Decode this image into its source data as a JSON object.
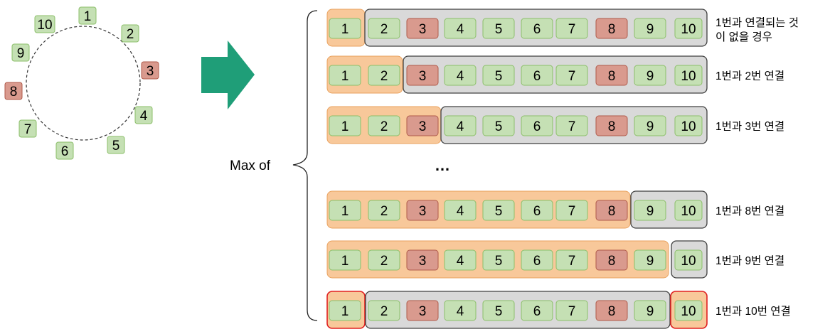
{
  "colors": {
    "green_fill": "#c5e0b4",
    "green_stroke": "#8cbf6a",
    "red_fill": "#d99a8e",
    "red_stroke": "#b05a4a",
    "orange_fill": "#f8c89a",
    "orange_stroke": "#e9a25f",
    "gray_fill": "#d9d9d9",
    "gray_stroke": "#404040",
    "arrow": "#1f9e78",
    "highlight_red": "#e02020"
  },
  "ring": {
    "nodes": [
      {
        "label": "1",
        "red": false
      },
      {
        "label": "2",
        "red": false
      },
      {
        "label": "3",
        "red": true
      },
      {
        "label": "4",
        "red": false
      },
      {
        "label": "5",
        "red": false
      },
      {
        "label": "6",
        "red": false
      },
      {
        "label": "7",
        "red": false
      },
      {
        "label": "8",
        "red": true
      },
      {
        "label": "9",
        "red": false
      },
      {
        "label": "10",
        "red": false
      }
    ]
  },
  "max_label": "Max of",
  "ellipsis": "…",
  "cells": [
    "1",
    "2",
    "3",
    "4",
    "5",
    "6",
    "7",
    "8",
    "9",
    "10"
  ],
  "red_cells": [
    "3",
    "8"
  ],
  "rows": [
    {
      "split": 1,
      "caption": [
        "1번과 연결되는 것",
        "이 없을 경우"
      ],
      "red_ends": false
    },
    {
      "split": 2,
      "caption": [
        "1번과 2번 연결"
      ],
      "red_ends": false
    },
    {
      "split": 3,
      "caption": [
        "1번과 3번 연결"
      ],
      "red_ends": false
    },
    {
      "split": 8,
      "caption": [
        "1번과 8번 연결"
      ],
      "red_ends": false
    },
    {
      "split": 9,
      "caption": [
        "1번과 9번 연결"
      ],
      "red_ends": false
    },
    {
      "split": 1,
      "caption": [
        "1번과 10번 연결"
      ],
      "red_ends": true
    }
  ]
}
